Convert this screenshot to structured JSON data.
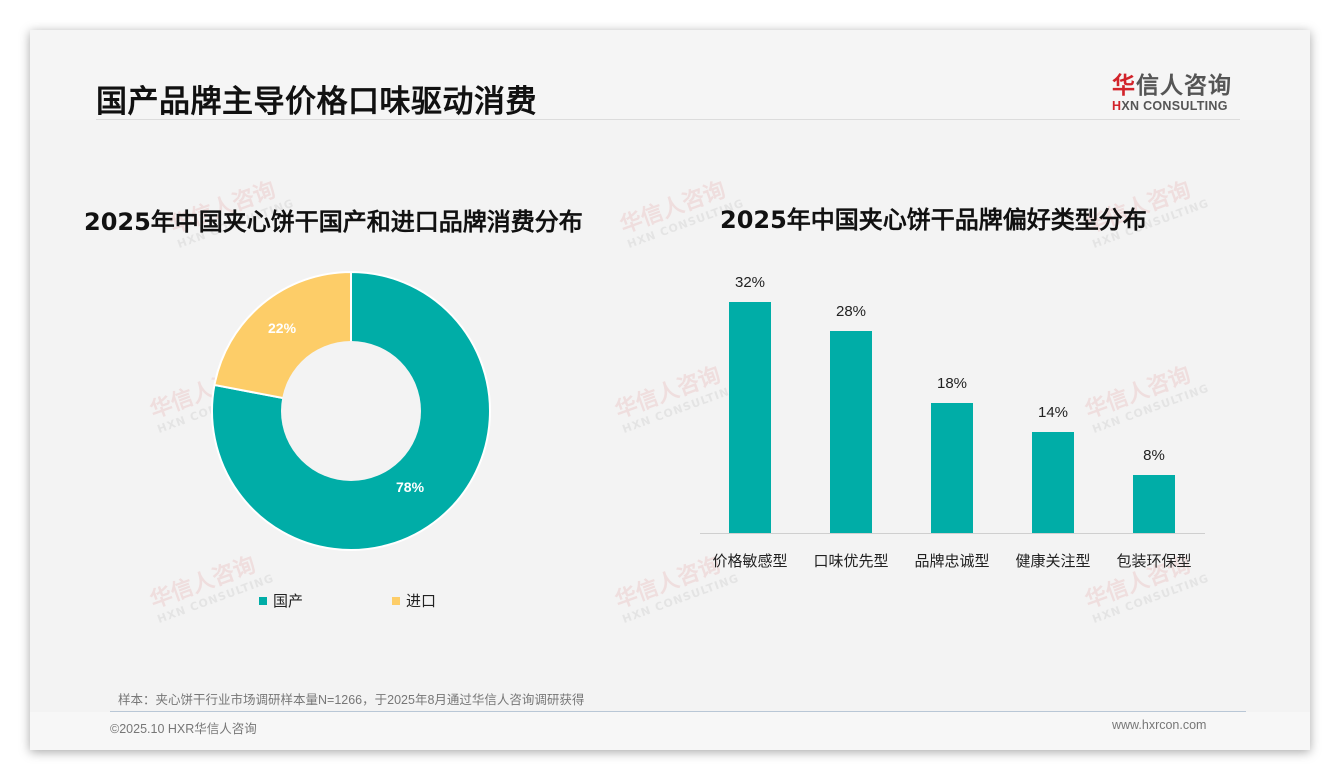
{
  "page": {
    "title": "国产品牌主导价格口味驱动消费",
    "logo": {
      "cn_first": "华",
      "cn_rest": "信人咨询",
      "en_mark": "H",
      "en_rest": "XN CONSULTING"
    },
    "watermark": {
      "cn": "华信人咨询",
      "en": "HXN CONSULTING"
    },
    "source_note": "样本：夹心饼干行业市场调研样本量N=1266，于2025年8月通过华信人咨询调研获得",
    "footer_left": "©2025.10 HXR华信人咨询",
    "footer_right": "www.hxrcon.com"
  },
  "colors": {
    "teal": "#00ada7",
    "yellow": "#fdcd68",
    "logo_red": "#d2232a"
  },
  "chart_data": [
    {
      "type": "pie",
      "title": "2025年中国夹心饼干国产和进口品牌消费分布",
      "donut": true,
      "categories": [
        "国产",
        "进口"
      ],
      "values": [
        78,
        22
      ],
      "labels": [
        "78%",
        "22%"
      ],
      "colors": [
        "#00ada7",
        "#fdcd68"
      ],
      "legend_position": "bottom"
    },
    {
      "type": "bar",
      "title": "2025年中国夹心饼干品牌偏好类型分布",
      "categories": [
        "价格敏感型",
        "口味优先型",
        "品牌忠诚型",
        "健康关注型",
        "包装环保型"
      ],
      "values": [
        32,
        28,
        18,
        14,
        8
      ],
      "labels": [
        "32%",
        "28%",
        "18%",
        "14%",
        "8%"
      ],
      "xlabel": "",
      "ylabel": "",
      "ylim": [
        0,
        35
      ],
      "grid": false,
      "color": "#00ada7"
    }
  ]
}
